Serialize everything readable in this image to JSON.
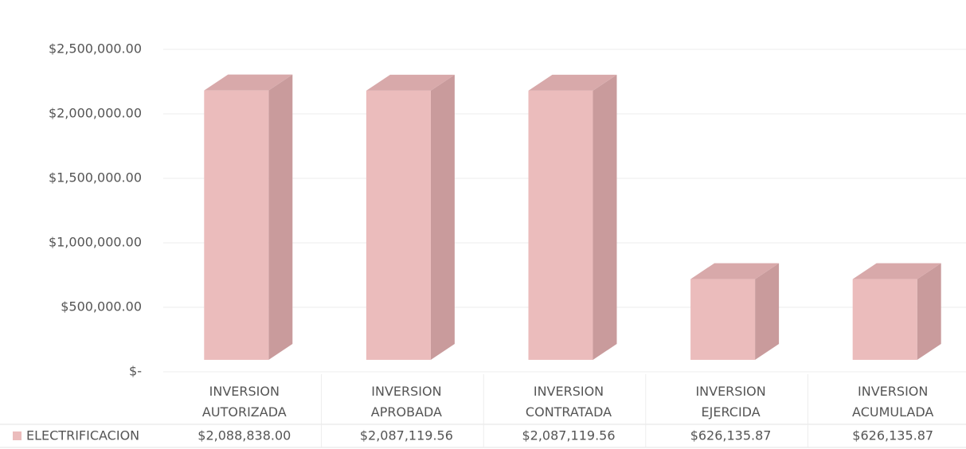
{
  "chart_data": {
    "type": "bar3d",
    "categories": [
      "INVERSION AUTORIZADA",
      "INVERSION APROBADA",
      "INVERSION CONTRATADA",
      "INVERSION EJERCIDA",
      "INVERSION ACUMULADA"
    ],
    "series": [
      {
        "name": "ELECTRIFICACION",
        "color": "#ebbcbc",
        "values": [
          2088838.0,
          2087119.56,
          2087119.56,
          626135.87,
          626135.87
        ],
        "value_labels": [
          "$2,088,838.00",
          "$2,087,119.56",
          "$2,087,119.56",
          "$626,135.87",
          "$626,135.87"
        ]
      }
    ],
    "ylim": [
      0,
      2500000
    ],
    "yticks": [
      {
        "value": 0,
        "label": "$-"
      },
      {
        "value": 500000,
        "label": "$500,000.00"
      },
      {
        "value": 1000000,
        "label": "$1,000,000.00"
      },
      {
        "value": 1500000,
        "label": "$1,500,000.00"
      },
      {
        "value": 2000000,
        "label": "$2,000,000.00"
      },
      {
        "value": 2500000,
        "label": "$2,500,000.00"
      }
    ],
    "grid": true,
    "legend": "data-table"
  }
}
